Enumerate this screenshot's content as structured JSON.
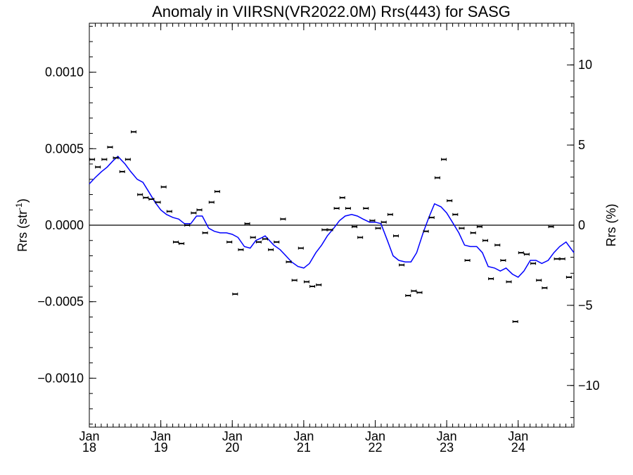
{
  "chart_data": {
    "type": "line",
    "title": "Anomaly in VIIRSN(VR2022.0M) Rrs(443) for SASG",
    "ylabel_left": {
      "base": "Rrs (str",
      "sup": "-1",
      "tail": ")"
    },
    "ylabel_right": "Rrs (%)",
    "xlim": [
      2018.0,
      2024.78
    ],
    "ylim_left": [
      -0.00132,
      0.00132
    ],
    "ylim_right": [
      -12.6,
      12.6
    ],
    "x_ticks": [
      {
        "x": 2018,
        "month": "Jan",
        "year": "18"
      },
      {
        "x": 2019,
        "month": "Jan",
        "year": "19"
      },
      {
        "x": 2020,
        "month": "Jan",
        "year": "20"
      },
      {
        "x": 2021,
        "month": "Jan",
        "year": "21"
      },
      {
        "x": 2022,
        "month": "Jan",
        "year": "22"
      },
      {
        "x": 2023,
        "month": "Jan",
        "year": "23"
      },
      {
        "x": 2024,
        "month": "Jan",
        "year": "24"
      }
    ],
    "y_ticks_left": [
      {
        "value": 0.001,
        "label": "0.0010"
      },
      {
        "value": 0.0005,
        "label": "0.0005"
      },
      {
        "value": 0.0,
        "label": "0.0000"
      },
      {
        "value": -0.0005,
        "label": "−0.0005"
      },
      {
        "value": -0.001,
        "label": "−0.0010"
      }
    ],
    "y_ticks_right": [
      {
        "value": 10,
        "label": "10"
      },
      {
        "value": 5,
        "label": "5"
      },
      {
        "value": 0,
        "label": "0"
      },
      {
        "value": -5,
        "label": "−5"
      },
      {
        "value": -10,
        "label": "−10"
      }
    ],
    "zero_line": 0,
    "colors": {
      "smooth_line": "#0000ff",
      "points": "#000000",
      "zero_line": "#000000"
    },
    "series": [
      {
        "type": "scatter_errorbar",
        "x": [
          2018.04,
          2018.12,
          2018.21,
          2018.29,
          2018.37,
          2018.46,
          2018.54,
          2018.62,
          2018.71,
          2018.79,
          2018.87,
          2018.96,
          2019.04,
          2019.12,
          2019.21,
          2019.29,
          2019.37,
          2019.46,
          2019.54,
          2019.62,
          2019.71,
          2019.79,
          2019.87,
          2019.96,
          2020.04,
          2020.12,
          2020.21,
          2020.29,
          2020.37,
          2020.46,
          2020.54,
          2020.62,
          2020.71,
          2020.79,
          2020.87,
          2020.96,
          2021.04,
          2021.12,
          2021.21,
          2021.29,
          2021.37,
          2021.46,
          2021.54,
          2021.62,
          2021.71,
          2021.79,
          2021.87,
          2021.96,
          2022.04,
          2022.12,
          2022.21,
          2022.29,
          2022.37,
          2022.46,
          2022.54,
          2022.62,
          2022.71,
          2022.79,
          2022.87,
          2022.96,
          2023.04,
          2023.12,
          2023.21,
          2023.29,
          2023.37,
          2023.46,
          2023.54,
          2023.62,
          2023.71,
          2023.79,
          2023.87,
          2023.96,
          2024.04,
          2024.12,
          2024.21,
          2024.29,
          2024.37,
          2024.46,
          2024.54,
          2024.62,
          2024.71,
          2024.79
        ],
        "y": [
          0.00043,
          0.00038,
          0.00043,
          0.00051,
          0.00044,
          0.00035,
          0.00043,
          0.00061,
          0.0002,
          0.00018,
          0.00017,
          0.00015,
          0.00025,
          9e-05,
          -0.00011,
          -0.00012,
          0.0,
          8e-05,
          0.0001,
          -5e-05,
          0.00015,
          0.00022,
          null,
          -0.00011,
          -0.00045,
          -0.00016,
          1e-05,
          -8e-05,
          -0.00011,
          -9e-05,
          -0.00016,
          -0.00011,
          4e-05,
          -0.00024,
          -0.00036,
          -0.00015,
          -0.00037,
          -0.0004,
          -0.00039,
          -3e-05,
          -3e-05,
          0.00011,
          0.00018,
          0.00011,
          -1e-05,
          -8e-05,
          0.00011,
          3e-05,
          -2e-05,
          2e-05,
          7e-05,
          -7e-05,
          -0.00026,
          -0.00046,
          -0.00043,
          -0.00044,
          -4e-05,
          5e-05,
          0.00031,
          0.00043,
          0.00016,
          7e-05,
          -2e-05,
          -0.00023,
          -5e-05,
          -1e-05,
          -0.0001,
          -0.00035,
          -0.00013,
          -0.00023,
          -0.00037,
          -0.00063,
          -0.00018,
          -0.00019,
          -0.00025,
          -0.00036,
          -0.00041,
          -1e-05,
          -0.00022,
          -0.00022,
          -0.00034,
          null
        ]
      },
      {
        "type": "line",
        "x": [
          2018.0,
          2018.08,
          2018.17,
          2018.25,
          2018.33,
          2018.4,
          2018.5,
          2018.58,
          2018.67,
          2018.75,
          2018.83,
          2018.92,
          2019.0,
          2019.08,
          2019.17,
          2019.25,
          2019.33,
          2019.42,
          2019.5,
          2019.58,
          2019.67,
          2019.75,
          2019.83,
          2019.92,
          2020.0,
          2020.08,
          2020.17,
          2020.25,
          2020.33,
          2020.42,
          2020.46,
          2020.5,
          2020.58,
          2020.67,
          2020.75,
          2020.83,
          2020.92,
          2021.0,
          2021.08,
          2021.17,
          2021.25,
          2021.33,
          2021.42,
          2021.5,
          2021.58,
          2021.67,
          2021.75,
          2021.83,
          2021.92,
          2022.0,
          2022.08,
          2022.17,
          2022.25,
          2022.33,
          2022.42,
          2022.5,
          2022.58,
          2022.67,
          2022.75,
          2022.83,
          2022.92,
          2023.0,
          2023.08,
          2023.17,
          2023.25,
          2023.33,
          2023.42,
          2023.5,
          2023.58,
          2023.67,
          2023.75,
          2023.83,
          2023.92,
          2024.0,
          2024.08,
          2024.17,
          2024.25,
          2024.33,
          2024.42,
          2024.5,
          2024.58,
          2024.67,
          2024.78
        ],
        "y": [
          0.00027,
          0.00031,
          0.00035,
          0.00038,
          0.00042,
          0.00045,
          0.0004,
          0.00035,
          0.0003,
          0.00028,
          0.00022,
          0.00015,
          0.0001,
          7e-05,
          5e-05,
          4e-05,
          1e-05,
          1e-05,
          6e-05,
          6e-05,
          -2e-05,
          -4e-05,
          -5e-05,
          -5e-05,
          -6e-05,
          -8e-05,
          -0.00014,
          -0.00015,
          -0.0001,
          -8e-05,
          -7e-05,
          -9e-05,
          -0.00013,
          -0.00016,
          -0.0002,
          -0.00024,
          -0.00027,
          -0.00028,
          -0.00025,
          -0.00018,
          -0.00013,
          -7e-05,
          -2e-05,
          3e-05,
          6e-05,
          7e-05,
          6e-05,
          4e-05,
          2e-05,
          2e-05,
          1e-05,
          -0.0001,
          -0.0002,
          -0.00023,
          -0.00024,
          -0.00024,
          -0.00018,
          -5e-05,
          5e-05,
          0.00014,
          0.00012,
          8e-05,
          2e-05,
          -5e-05,
          -0.00013,
          -0.00014,
          -0.00014,
          -0.00018,
          -0.00027,
          -0.00028,
          -0.0003,
          -0.00028,
          -0.00032,
          -0.00034,
          -0.0003,
          -0.00023,
          -0.00023,
          -0.00025,
          -0.00023,
          -0.00018,
          -0.00014,
          -0.00011,
          -0.00018
        ]
      }
    ]
  }
}
